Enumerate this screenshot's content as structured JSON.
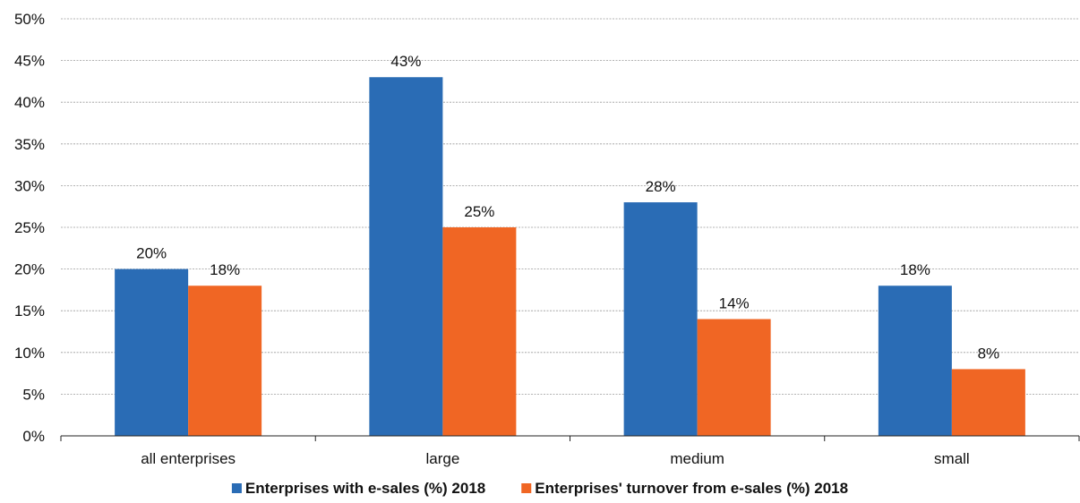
{
  "chart_data": {
    "type": "bar",
    "categories": [
      "all enterprises",
      "large",
      "medium",
      "small"
    ],
    "series": [
      {
        "name": "Enterprises with e-sales (%) 2018",
        "values": [
          20,
          43,
          28,
          18
        ],
        "color": "#2a6cb5",
        "labels": [
          "20%",
          "43%",
          "28%",
          "18%"
        ]
      },
      {
        "name": "Enterprises' turnover from e-sales (%) 2018",
        "values": [
          18,
          25,
          14,
          8
        ],
        "color": "#f06624",
        "labels": [
          "18%",
          "25%",
          "14%",
          "8%"
        ]
      }
    ],
    "ylim": [
      0,
      50
    ],
    "yticks": [
      0,
      5,
      10,
      15,
      20,
      25,
      30,
      35,
      40,
      45,
      50
    ],
    "ytick_labels": [
      "0%",
      "5%",
      "10%",
      "15%",
      "20%",
      "25%",
      "30%",
      "35%",
      "40%",
      "45%",
      "50%"
    ],
    "grid": true,
    "legend_position": "bottom-center",
    "title": "",
    "xlabel": "",
    "ylabel": ""
  }
}
